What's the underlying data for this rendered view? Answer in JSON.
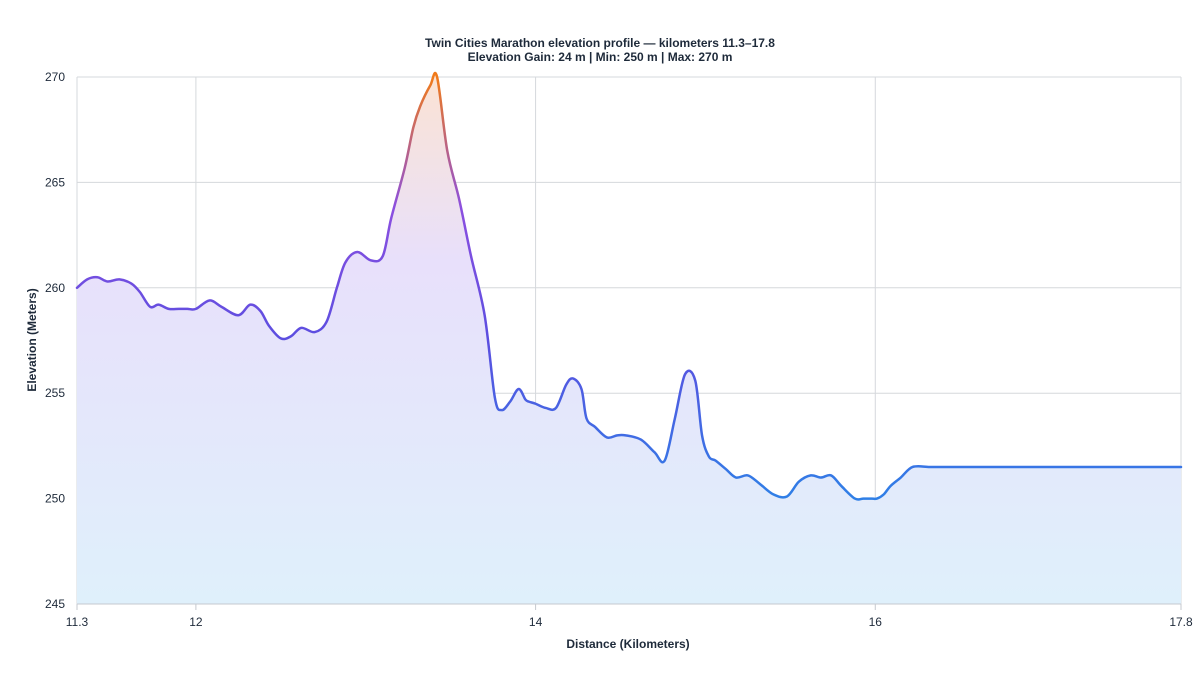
{
  "chart_data": {
    "type": "area",
    "title": "Twin Cities Marathon elevation profile — kilometers 11.3–17.8",
    "subtitle": "Elevation Gain: 24 m | Min: 250 m | Max: 270 m",
    "xlabel": "Distance (Kilometers)",
    "ylabel": "Elevation (Meters)",
    "xlim": [
      11.3,
      17.8
    ],
    "ylim": [
      245,
      270
    ],
    "x_ticks": [
      {
        "value": 11.3,
        "label": "11.3"
      },
      {
        "value": 12,
        "label": "12"
      },
      {
        "value": 14,
        "label": "14"
      },
      {
        "value": 16,
        "label": "16"
      },
      {
        "value": 17.8,
        "label": "17.8"
      }
    ],
    "y_ticks": [
      {
        "value": 245,
        "label": "245"
      },
      {
        "value": 250,
        "label": "250"
      },
      {
        "value": 255,
        "label": "255"
      },
      {
        "value": 260,
        "label": "260"
      },
      {
        "value": 265,
        "label": "265"
      },
      {
        "value": 270,
        "label": "270"
      }
    ],
    "grid": true,
    "line_gradient_colors": [
      "#f07a1a",
      "#8b4fe0",
      "#5b4ee0",
      "#2f7fe6"
    ],
    "fill_gradient_colors": [
      "#fbe3d4",
      "#e8e0fb",
      "#dff0fb"
    ],
    "series": [
      {
        "x": [
          11.3,
          11.36,
          11.42,
          11.48,
          11.55,
          11.62,
          11.67,
          11.73,
          11.78,
          11.84,
          11.9,
          11.95,
          12.0,
          12.08,
          12.15,
          12.25,
          12.32,
          12.38,
          12.43,
          12.5,
          12.56,
          12.62,
          12.7,
          12.77,
          12.83,
          12.88,
          12.95,
          13.03,
          13.1,
          13.15,
          13.23,
          13.28,
          13.32,
          13.38,
          13.42,
          13.48,
          13.55,
          13.62,
          13.7,
          13.76,
          13.8,
          13.85,
          13.9,
          13.94,
          13.96,
          14.0,
          14.06,
          14.12,
          14.18,
          14.22,
          14.27,
          14.3,
          14.35,
          14.42,
          14.48,
          14.53,
          14.62,
          14.7,
          14.76,
          14.82,
          14.88,
          14.94,
          14.98,
          15.02,
          15.06,
          15.12,
          15.18,
          15.25,
          15.32,
          15.4,
          15.48,
          15.55,
          15.62,
          15.68,
          15.74,
          15.8,
          15.88,
          15.93,
          15.98,
          16.01,
          16.05,
          16.09,
          16.15,
          16.22,
          16.32,
          16.42,
          16.52,
          16.6,
          16.68,
          16.74,
          16.8,
          16.88,
          16.95,
          17.02,
          17.08,
          17.14,
          17.22,
          17.3,
          17.38,
          17.45,
          17.52,
          17.6,
          17.68,
          17.75,
          17.8
        ],
        "y": [
          260.0,
          260.4,
          260.5,
          260.3,
          260.4,
          260.2,
          259.8,
          259.1,
          259.2,
          259.0,
          259.0,
          259.0,
          259.0,
          259.4,
          259.1,
          258.7,
          259.2,
          258.9,
          258.2,
          257.6,
          257.7,
          258.1,
          257.9,
          258.4,
          260.0,
          261.2,
          261.7,
          261.3,
          261.5,
          263.3,
          265.7,
          267.6,
          268.6,
          269.6,
          270.0,
          266.5,
          264.2,
          261.5,
          258.7,
          254.8,
          254.2,
          254.6,
          255.2,
          254.7,
          254.6,
          254.5,
          254.3,
          254.3,
          255.4,
          255.7,
          255.2,
          253.8,
          253.4,
          252.9,
          253.0,
          253.0,
          252.8,
          252.2,
          251.8,
          253.8,
          255.9,
          255.6,
          253.0,
          252.0,
          251.8,
          251.4,
          251.0,
          251.1,
          250.7,
          250.2,
          250.1,
          250.8,
          251.1,
          251.0,
          251.1,
          250.6,
          250.0,
          250.0,
          250.0,
          250.0,
          250.2,
          250.6,
          251.0,
          251.5,
          251.5,
          251.5,
          251.5,
          251.5,
          251.5,
          251.5,
          251.5,
          251.5,
          251.5,
          251.5,
          251.5,
          251.5,
          251.5,
          251.5,
          251.5,
          251.5,
          251.5,
          251.5,
          251.5,
          251.5,
          251.5
        ]
      }
    ]
  }
}
